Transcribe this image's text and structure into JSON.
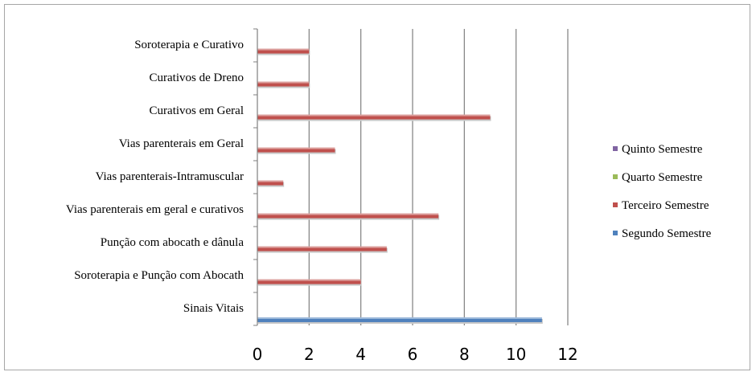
{
  "chart_data": {
    "type": "bar",
    "orientation": "horizontal",
    "categories": [
      "Sinais Vitais",
      "Soroterapia e Punção com Abocath",
      "Punção com abocath e dânula",
      "Vias parenterais em geral e curativos",
      "Vias parenterais-Intramuscular",
      "Vias parenterais em Geral",
      "Curativos em Geral",
      "Curativos de Dreno",
      "Soroterapia e Curativo"
    ],
    "series": [
      {
        "name": "Segundo Semestre",
        "color": "#4f81bd",
        "values": [
          11,
          null,
          null,
          null,
          null,
          null,
          null,
          null,
          null
        ]
      },
      {
        "name": "Terceiro Semestre",
        "color": "#c0504d",
        "values": [
          null,
          4,
          5,
          7,
          1,
          3,
          9,
          2,
          2
        ]
      },
      {
        "name": "Quarto Semestre",
        "color": "#9bbb59",
        "values": [
          null,
          null,
          null,
          null,
          null,
          null,
          null,
          null,
          null
        ]
      },
      {
        "name": "Quinto Semestre",
        "color": "#8064a2",
        "values": [
          null,
          null,
          null,
          null,
          null,
          null,
          null,
          null,
          null
        ]
      }
    ],
    "xlim": [
      0,
      12
    ],
    "xticks": [
      "0",
      "2",
      "4",
      "6",
      "8",
      "10",
      "12"
    ],
    "grid": true,
    "legend_position": "right",
    "legend_order": [
      "Quinto Semestre",
      "Quarto Semestre",
      "Terceiro Semestre",
      "Segundo Semestre"
    ]
  }
}
